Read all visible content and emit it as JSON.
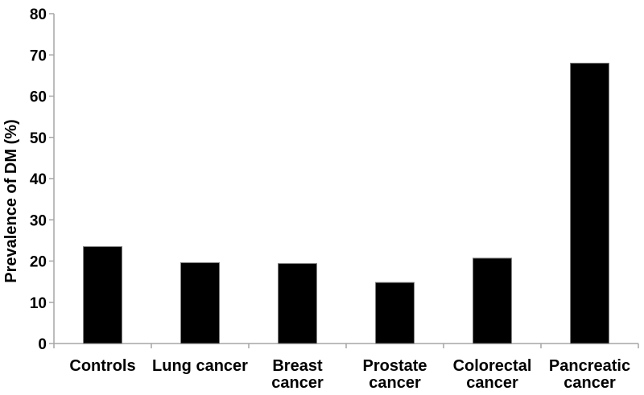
{
  "chart_data": {
    "type": "bar",
    "title": "",
    "xlabel": "",
    "ylabel": "Prevalence of DM (%)",
    "categories": [
      "Controls",
      "Lung cancer",
      "Breast cancer",
      "Prostate cancer",
      "Colorectal cancer",
      "Pancreatic cancer"
    ],
    "category_label_lines": [
      [
        "Controls"
      ],
      [
        "Lung cancer"
      ],
      [
        "Breast",
        "cancer"
      ],
      [
        "Prostate",
        "cancer"
      ],
      [
        "Colorectal",
        "cancer"
      ],
      [
        "Pancreatic",
        "cancer"
      ]
    ],
    "values": [
      23.5,
      19.6,
      19.4,
      14.8,
      20.7,
      68
    ],
    "ylim": [
      0,
      80
    ],
    "yticks": [
      0,
      10,
      20,
      30,
      40,
      50,
      60,
      70,
      80
    ],
    "ytick_labels": [
      "0",
      "10",
      "20",
      "30",
      "40",
      "50",
      "60",
      "70",
      "80"
    ],
    "grid": false,
    "legend": false,
    "colors": {
      "bar_fill": "#000000",
      "bar_border": "#808080",
      "axis_line": "#a6a6a6",
      "text": "#000000",
      "background": "#ffffff"
    }
  }
}
